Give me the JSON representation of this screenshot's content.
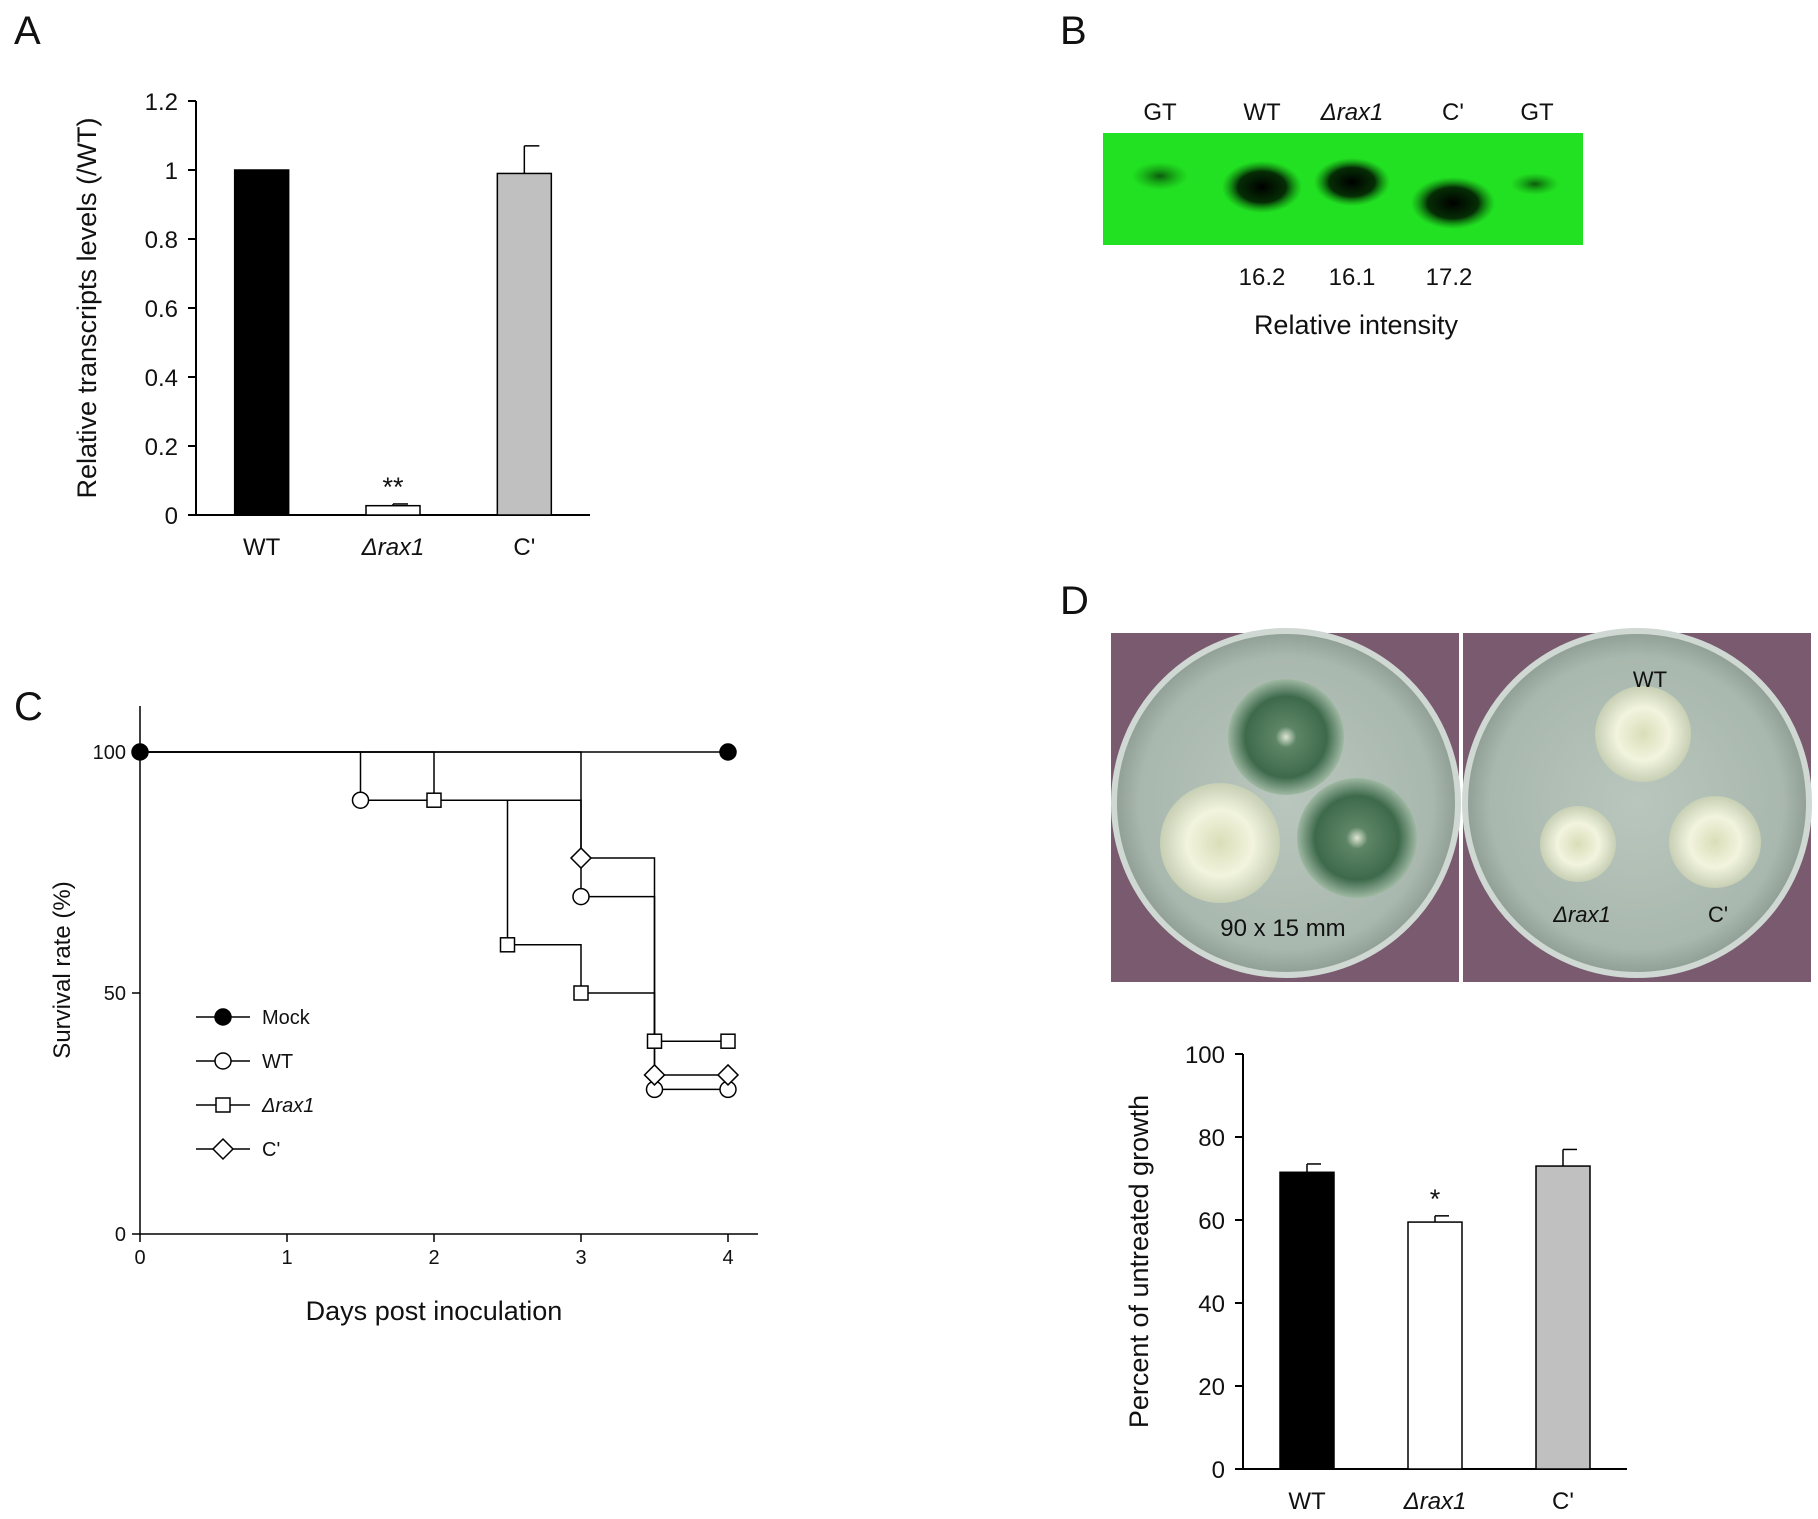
{
  "panels": {
    "A": "A",
    "B": "B",
    "C": "C",
    "D": "D"
  },
  "chart_data": [
    {
      "panel": "A",
      "type": "bar",
      "categories": [
        "WT",
        "Δrax1",
        "C'"
      ],
      "values": [
        1.0,
        0.027,
        0.99
      ],
      "errors": [
        0.0,
        0.005,
        0.08
      ],
      "colors": [
        "#000000",
        "#ffffff",
        "#c0c0c0"
      ],
      "significance": [
        "",
        "**",
        ""
      ],
      "ylabel": "Relative transcripts levels (/WT)",
      "ylim": [
        0,
        1.2
      ],
      "yticks": [
        "0",
        "0.2",
        "0.4",
        "0.6",
        "0.8",
        "1",
        "1.2"
      ],
      "grid": false
    },
    {
      "panel": "C",
      "type": "line",
      "xlabel": "Days post inoculation",
      "ylabel": "Survival  rate (%)",
      "xlim": [
        0,
        4
      ],
      "ylim": [
        0,
        100
      ],
      "xticks": [
        "0",
        "1",
        "2",
        "3",
        "4"
      ],
      "yticks": [
        "0",
        "50",
        "100"
      ],
      "legend_position": "bottom-left",
      "series": [
        {
          "name": "Mock",
          "marker": "filled-circle",
          "x": [
            0,
            4
          ],
          "y": [
            100,
            100
          ]
        },
        {
          "name": "WT",
          "marker": "open-circle",
          "x": [
            0,
            1.5,
            3,
            3.5,
            4
          ],
          "y": [
            100,
            90,
            70,
            30,
            30
          ]
        },
        {
          "name": "Δrax1",
          "marker": "open-square",
          "x": [
            0,
            2,
            2.5,
            3,
            3.5,
            4
          ],
          "y": [
            100,
            90,
            60,
            50,
            40,
            40
          ]
        },
        {
          "name": "C'",
          "marker": "open-diamond",
          "x": [
            0,
            3,
            3.5,
            4
          ],
          "y": [
            100,
            78,
            33,
            33
          ]
        }
      ]
    },
    {
      "panel": "D",
      "type": "bar",
      "categories": [
        "WT",
        "Δrax1",
        "C'"
      ],
      "values": [
        71.5,
        59.5,
        73
      ],
      "errors": [
        2,
        1.5,
        4
      ],
      "colors": [
        "#000000",
        "#ffffff",
        "#c0c0c0"
      ],
      "significance": [
        "",
        "*",
        ""
      ],
      "ylabel": "Percent of untreated growth",
      "ylim": [
        0,
        100
      ],
      "yticks": [
        "0",
        "20",
        "40",
        "60",
        "80",
        "100"
      ],
      "grid": false
    }
  ],
  "blot": {
    "lane_labels": [
      "GT",
      "WT",
      "Δrax1",
      "C'",
      "GT"
    ],
    "intensities": [
      "16.2",
      "16.1",
      "17.2"
    ],
    "caption": "Relative  intensity",
    "background_color": "#22e022"
  },
  "photos": {
    "dish_size": "90 x 15 mm",
    "right_labels": {
      "wt": "WT",
      "mutant": "Δrax1",
      "comp": "C'"
    }
  }
}
